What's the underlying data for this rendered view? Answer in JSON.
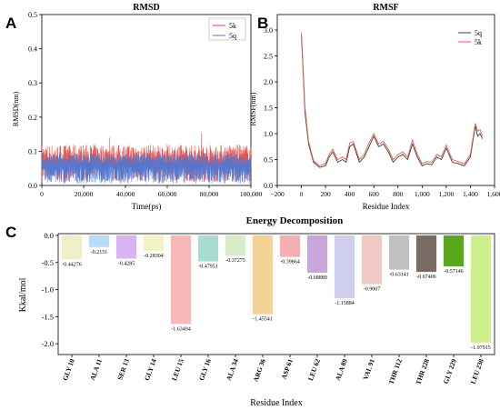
{
  "chart_data": [
    {
      "panel": "A",
      "type": "line",
      "title": "RMSD",
      "xlabel": "Time(ps)",
      "ylabel": "RMSD(nm)",
      "xlim": [
        0,
        100000
      ],
      "ylim": [
        0,
        0.5
      ],
      "xticks": [
        0,
        20000,
        40000,
        60000,
        80000,
        100000
      ],
      "xtick_labels": [
        "0",
        "20,000",
        "40,000",
        "60,000",
        "80,000",
        "100,000"
      ],
      "yticks": [
        0.0,
        0.1,
        0.2,
        0.3,
        0.4,
        0.5
      ],
      "ytick_labels": [
        "0.0",
        "0.1",
        "0.2",
        "0.3",
        "0.4",
        "0.5"
      ],
      "legend_position": "top-right",
      "series": [
        {
          "name": "5k",
          "color": "#e8413c",
          "baseline": 0.065,
          "band_low": 0.01,
          "band_high": 0.12,
          "peak": 0.155
        },
        {
          "name": "5q",
          "color": "#3d7be0",
          "baseline": 0.055,
          "band_low": 0.005,
          "band_high": 0.095,
          "peak": 0.1
        }
      ]
    },
    {
      "panel": "B",
      "type": "line",
      "title": "RMSF",
      "xlabel": "Residue Index",
      "ylabel": "RMSF(nm)",
      "xlim": [
        -200,
        1600
      ],
      "ylim": [
        0,
        3.0
      ],
      "xticks": [
        -200,
        0,
        200,
        400,
        600,
        800,
        1000,
        1200,
        1400,
        1600
      ],
      "xtick_labels": [
        "−200",
        "0",
        "200",
        "400",
        "600",
        "800",
        "1,000",
        "1,200",
        "1,400",
        "1,600"
      ],
      "yticks": [
        0.0,
        0.5,
        1.0,
        1.5,
        2.0,
        2.5,
        3.0
      ],
      "ytick_labels": [
        "0.0",
        "0.5",
        "1.0",
        "1.5",
        "2.0",
        "2.5",
        "3.0"
      ],
      "legend_position": "top-right",
      "series": [
        {
          "name": "5q",
          "color": "#4a3a2a",
          "x": [
            0,
            30,
            60,
            100,
            150,
            200,
            230,
            260,
            300,
            340,
            370,
            400,
            430,
            480,
            520,
            560,
            600,
            640,
            680,
            720,
            760,
            800,
            840,
            880,
            920,
            960,
            1000,
            1040,
            1080,
            1120,
            1160,
            1200,
            1250,
            1300,
            1350,
            1400,
            1440,
            1460,
            1480,
            1500
          ],
          "y": [
            2.9,
            1.4,
            0.8,
            0.45,
            0.35,
            0.38,
            0.55,
            0.65,
            0.45,
            0.5,
            0.45,
            0.75,
            0.8,
            0.45,
            0.55,
            0.75,
            0.95,
            0.75,
            0.8,
            0.65,
            0.45,
            0.55,
            0.6,
            0.5,
            0.8,
            0.55,
            0.38,
            0.42,
            0.4,
            0.55,
            0.5,
            0.72,
            0.45,
            0.42,
            0.38,
            0.55,
            1.15,
            0.95,
            1.0,
            0.9
          ]
        },
        {
          "name": "5k",
          "color": "#e0605a",
          "x": [
            0,
            30,
            60,
            100,
            150,
            200,
            230,
            260,
            300,
            340,
            370,
            400,
            430,
            480,
            520,
            560,
            600,
            640,
            680,
            720,
            760,
            800,
            840,
            880,
            920,
            960,
            1000,
            1040,
            1080,
            1120,
            1160,
            1200,
            1250,
            1300,
            1350,
            1400,
            1440,
            1460,
            1480,
            1500
          ],
          "y": [
            2.95,
            1.5,
            0.85,
            0.48,
            0.38,
            0.42,
            0.6,
            0.7,
            0.5,
            0.55,
            0.5,
            0.82,
            0.85,
            0.5,
            0.6,
            0.82,
            1.0,
            0.8,
            0.85,
            0.7,
            0.5,
            0.6,
            0.65,
            0.55,
            0.88,
            0.6,
            0.42,
            0.46,
            0.45,
            0.6,
            0.55,
            0.78,
            0.5,
            0.46,
            0.42,
            0.6,
            1.2,
            1.05,
            1.08,
            0.95
          ]
        }
      ]
    },
    {
      "panel": "C",
      "type": "bar",
      "title": "Energy Decomposition",
      "xlabel": "Residue Index",
      "ylabel": "Kkal/mol",
      "ylim": [
        -2.2,
        0.0
      ],
      "yticks": [
        0.0,
        -0.5,
        -1.0,
        -1.5,
        -2.0
      ],
      "ytick_labels": [
        "0.0",
        "-0.5",
        "-1.0",
        "-1.5",
        "-2.0"
      ],
      "categories": [
        "GLY 10",
        "ALA 11",
        "SER 13",
        "GLY 14",
        "LEU 15",
        "GLY 16",
        "ALA 34",
        "ARG 36",
        "ASP 61",
        "LEU 62",
        "ALA 89",
        "VAL 91",
        "THR 112",
        "THR 228",
        "GLY 229",
        "LEU 230"
      ],
      "values": [
        -0.44276,
        -0.2151,
        -0.4285,
        -0.28304,
        -1.63494,
        -0.47951,
        -0.37275,
        -1.45541,
        -0.39864,
        -0.68889,
        -1.15884,
        -0.9007,
        -0.63141,
        -0.67406,
        -0.57146,
        -1.97915
      ],
      "value_labels": [
        "-0.44276",
        "-0.2151",
        "-0.4285",
        "-0.28304",
        "-1.63494",
        "-0.47951",
        "-0.37275",
        "-1.45541",
        "-0.39864",
        "-0.68889",
        "-1.15884",
        "-0.9007",
        "-0.63141",
        "-0.67406",
        "-0.57146",
        "-1.97915"
      ],
      "colors": [
        "#f0f0c8",
        "#b8dcf4",
        "#d8b4f4",
        "#f2f2c4",
        "#f6b8b8",
        "#a8dcd0",
        "#d6ecc8",
        "#f4d494",
        "#f4b0b0",
        "#c8a8dc",
        "#d0d0ee",
        "#f0c8c4",
        "#c0c0c0",
        "#7a6c64",
        "#5aa81c",
        "#cef08a"
      ]
    }
  ]
}
